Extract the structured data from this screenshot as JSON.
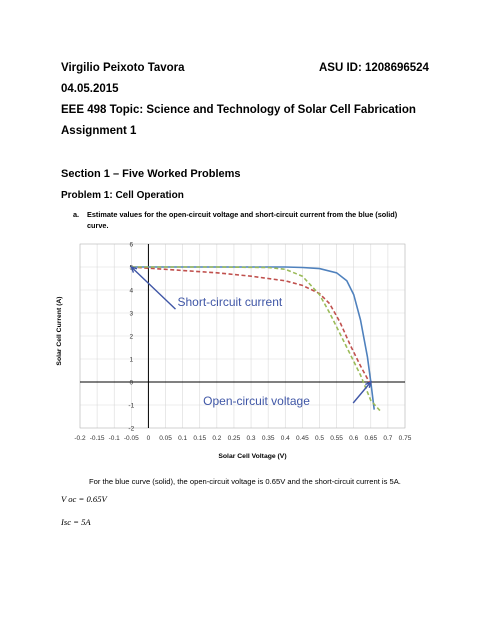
{
  "header": {
    "author": "Virgilio Peixoto Tavora",
    "asu_id": "ASU ID: 1208696524",
    "date": "04.05.2015",
    "course": "EEE 498 Topic: Science and Technology of Solar Cell Fabrication",
    "assignment": "Assignment 1"
  },
  "section": {
    "title": "Section 1 – Five Worked Problems",
    "problem_title": "Problem 1: Cell Operation",
    "question_marker": "a.",
    "question_line1": "Estimate values for the open-circuit voltage and short-circuit current from the blue (solid)",
    "question_line2": "curve."
  },
  "chart_data": {
    "type": "line",
    "xlabel": "Solar Cell Voltage (V)",
    "ylabel": "Solar Cell Current (A)",
    "xlim": [
      -0.2,
      0.75
    ],
    "ylim": [
      -2,
      6
    ],
    "x_ticks": [
      "-0.2",
      "-0.15",
      "-0.1",
      "-0.05",
      "0",
      "0.05",
      "0.1",
      "0.15",
      "0.2",
      "0.25",
      "0.3",
      "0.35",
      "0.4",
      "0.45",
      "0.5",
      "0.55",
      "0.6",
      "0.65",
      "0.7",
      "0.75"
    ],
    "y_ticks": [
      "-2",
      "-1",
      "0",
      "1",
      "2",
      "3",
      "4",
      "5",
      "6"
    ],
    "grid": true,
    "series": [
      {
        "style": "solid",
        "color": "#4F81BD",
        "x": [
          -0.05,
          0.0,
          0.2,
          0.4,
          0.45,
          0.5,
          0.55,
          0.58,
          0.6,
          0.62,
          0.64,
          0.65,
          0.66
        ],
        "y": [
          5.0,
          5.0,
          5.0,
          5.0,
          4.98,
          4.93,
          4.75,
          4.4,
          3.8,
          2.7,
          1.1,
          0.0,
          -1.2
        ]
      },
      {
        "style": "dashed",
        "color": "#C0504D",
        "x": [
          -0.05,
          0.0,
          0.1,
          0.2,
          0.3,
          0.4,
          0.45,
          0.5,
          0.53,
          0.56,
          0.59,
          0.62,
          0.64,
          0.65
        ],
        "y": [
          5.0,
          4.95,
          4.85,
          4.75,
          4.6,
          4.4,
          4.2,
          3.85,
          3.4,
          2.6,
          1.6,
          0.7,
          0.15,
          -0.1
        ]
      },
      {
        "style": "dashed",
        "color": "#9BBB59",
        "x": [
          -0.05,
          0.0,
          0.2,
          0.35,
          0.4,
          0.45,
          0.5,
          0.53,
          0.56,
          0.59,
          0.62,
          0.65,
          0.68
        ],
        "y": [
          5.0,
          5.0,
          5.0,
          4.98,
          4.9,
          4.6,
          3.8,
          3.0,
          2.1,
          1.2,
          0.3,
          -0.8,
          -1.3
        ]
      }
    ],
    "annotations": [
      {
        "text": "Short-circuit current",
        "color": "#3F56A6",
        "at_x": 0.085,
        "at_y": 3.3,
        "arrow_to_x": -0.05,
        "arrow_to_y": 5.0
      },
      {
        "text": "Open-circuit voltage",
        "color": "#3F56A6",
        "at_x": 0.16,
        "at_y": -1.0,
        "arrow_to_x": 0.65,
        "arrow_to_y": 0.0
      }
    ]
  },
  "answer": {
    "text": "For the blue curve (solid), the open-circuit voltage is 0.65V and the short-circuit current is 5A.",
    "voc": "V oc  =  0.65V",
    "isc": "Isc  =  5A"
  }
}
